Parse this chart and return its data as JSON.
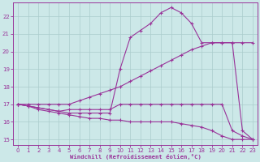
{
  "background_color": "#cce8e8",
  "grid_color": "#aacccc",
  "line_color": "#993399",
  "xlabel": "Windchill (Refroidissement éolien,°C)",
  "xlim": [
    -0.5,
    23.5
  ],
  "ylim": [
    14.7,
    22.8
  ],
  "yticks": [
    15,
    16,
    17,
    18,
    19,
    20,
    21,
    22
  ],
  "xticks": [
    0,
    1,
    2,
    3,
    4,
    5,
    6,
    7,
    8,
    9,
    10,
    11,
    12,
    13,
    14,
    15,
    16,
    17,
    18,
    19,
    20,
    21,
    22,
    23
  ],
  "series": [
    {
      "x": [
        0,
        1,
        2,
        3,
        4,
        5,
        6,
        7,
        8,
        9,
        10,
        11,
        12,
        13,
        14,
        15,
        16,
        17,
        18,
        19,
        20,
        21,
        22,
        23
      ],
      "y": [
        17.0,
        16.9,
        16.7,
        16.6,
        16.5,
        16.4,
        16.3,
        16.2,
        16.2,
        16.1,
        16.1,
        16.0,
        16.0,
        16.0,
        16.0,
        16.0,
        15.9,
        15.8,
        15.7,
        15.5,
        15.2,
        15.0,
        15.0,
        15.0
      ]
    },
    {
      "x": [
        0,
        1,
        2,
        3,
        4,
        5,
        6,
        7,
        8,
        9,
        10,
        11,
        12,
        13,
        14,
        15,
        16,
        17,
        18,
        19,
        20,
        21,
        22,
        23
      ],
      "y": [
        17.0,
        16.9,
        16.8,
        16.7,
        16.6,
        16.7,
        16.7,
        16.7,
        16.7,
        16.7,
        17.0,
        17.0,
        17.0,
        17.0,
        17.0,
        17.0,
        17.0,
        17.0,
        17.0,
        17.0,
        17.0,
        15.5,
        15.2,
        15.0
      ]
    },
    {
      "x": [
        0,
        1,
        2,
        3,
        4,
        5,
        6,
        7,
        8,
        9,
        10,
        11,
        12,
        13,
        14,
        15,
        16,
        17,
        18,
        19,
        20,
        21,
        22,
        23
      ],
      "y": [
        17.0,
        16.9,
        16.8,
        16.7,
        16.6,
        16.5,
        16.5,
        16.5,
        16.5,
        16.5,
        19.0,
        20.8,
        21.2,
        21.6,
        22.2,
        22.5,
        22.2,
        21.6,
        20.5,
        20.5,
        20.5,
        20.5,
        15.5,
        15.0
      ]
    },
    {
      "x": [
        0,
        1,
        2,
        3,
        4,
        5,
        6,
        7,
        8,
        9,
        10,
        11,
        12,
        13,
        14,
        15,
        16,
        17,
        18,
        19,
        20,
        21,
        22,
        23
      ],
      "y": [
        17.0,
        17.0,
        17.0,
        17.0,
        17.0,
        17.0,
        17.2,
        17.4,
        17.6,
        17.8,
        18.0,
        18.3,
        18.6,
        18.9,
        19.2,
        19.5,
        19.8,
        20.1,
        20.3,
        20.5,
        20.5,
        20.5,
        20.5,
        20.5
      ]
    }
  ]
}
